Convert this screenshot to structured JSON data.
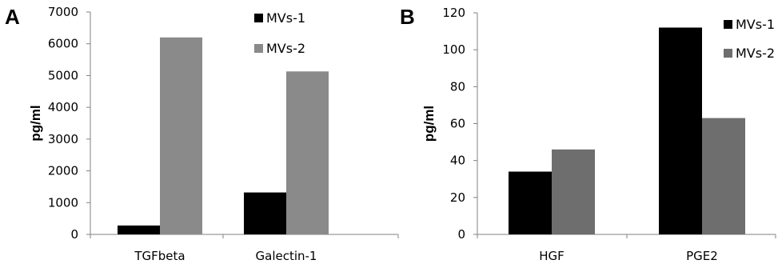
{
  "chart_data": [
    {
      "panel": "A",
      "type": "bar",
      "categories": [
        "TGFbeta",
        "Galectin-1"
      ],
      "series": [
        {
          "name": "MVs-1",
          "values": [
            280,
            1320
          ],
          "color": "#000000"
        },
        {
          "name": "MVs-2",
          "values": [
            6200,
            5130
          ],
          "color": "#8a8a8a"
        }
      ],
      "title": "",
      "xlabel": "",
      "ylabel": "pg/ml",
      "ylim": [
        0,
        7000
      ],
      "yticks": [
        0,
        1000,
        2000,
        3000,
        4000,
        5000,
        6000,
        7000
      ],
      "grid": false,
      "legend": "top-right"
    },
    {
      "panel": "B",
      "type": "bar",
      "categories": [
        "HGF",
        "PGE2"
      ],
      "series": [
        {
          "name": "MVs-1",
          "values": [
            34,
            112
          ],
          "color": "#000000"
        },
        {
          "name": "MVs-2",
          "values": [
            46,
            63
          ],
          "color": "#6e6e6e"
        }
      ],
      "title": "",
      "xlabel": "",
      "ylabel": "pg/ml",
      "ylim": [
        0,
        120
      ],
      "yticks": [
        0,
        20,
        40,
        60,
        80,
        100,
        120
      ],
      "grid": false,
      "legend": "top-right"
    }
  ]
}
